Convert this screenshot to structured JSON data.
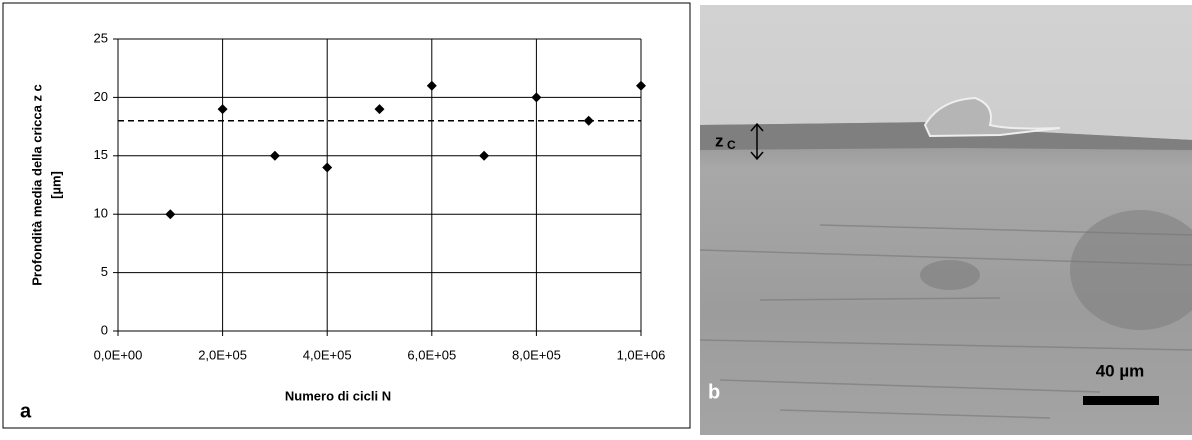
{
  "chart_data": {
    "type": "scatter",
    "x": [
      100000,
      200000,
      300000,
      400000,
      500000,
      600000,
      700000,
      800000,
      900000,
      1000000
    ],
    "values": [
      10,
      19,
      15,
      14,
      19,
      21,
      15,
      20,
      18,
      21
    ],
    "color": "#000000",
    "marker": "diamond",
    "xlabel": "Numero di cicli N",
    "ylabel": [
      "Profondità media della cricca z c",
      "[µm]"
    ],
    "xlim": [
      0,
      1000000
    ],
    "xticks": [
      {
        "value": 0,
        "label": "0,0E+00"
      },
      {
        "value": 200000,
        "label": "2,0E+05"
      },
      {
        "value": 400000,
        "label": "4,0E+05"
      },
      {
        "value": 600000,
        "label": "6,0E+05"
      },
      {
        "value": 800000,
        "label": "8,0E+05"
      },
      {
        "value": 1000000,
        "label": "1,0E+06"
      }
    ],
    "ylim": [
      0,
      25
    ],
    "yticks": [
      0,
      5,
      10,
      15,
      20,
      25
    ],
    "grid": true,
    "reference_line": {
      "value": 18,
      "style": "dashed"
    },
    "panel_label": "a"
  },
  "image": {
    "panel_label": "b",
    "depth_symbol": "z",
    "depth_subscript": "C",
    "scale_bar": "40 µm"
  }
}
